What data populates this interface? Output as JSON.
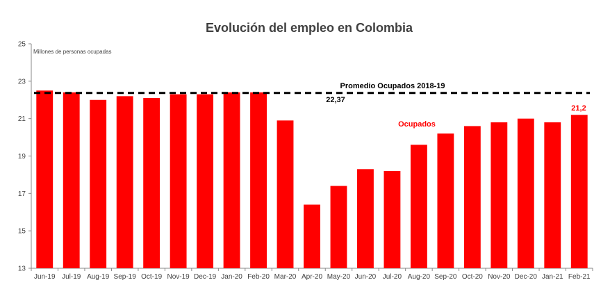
{
  "chart_data": {
    "type": "bar",
    "title": "Evolución del empleo en Colombia",
    "ylabel": "Millones de personas  ocupadas",
    "ylim": [
      13,
      25
    ],
    "yticks": [
      13,
      15,
      17,
      19,
      21,
      23,
      25
    ],
    "categories": [
      "Jun-19",
      "Jul-19",
      "Aug-19",
      "Sep-19",
      "Oct-19",
      "Nov-19",
      "Dec-19",
      "Jan-20",
      "Feb-20",
      "Mar-20",
      "Apr-20",
      "May-20",
      "Jun-20",
      "Jul-20",
      "Aug-20",
      "Sep-20",
      "Oct-20",
      "Nov-20",
      "Dec-20",
      "Jan-21",
      "Feb-21"
    ],
    "series": [
      {
        "name": "Ocupados",
        "values": [
          22.5,
          22.4,
          22.0,
          22.2,
          22.1,
          22.3,
          22.3,
          22.4,
          22.4,
          20.9,
          16.4,
          17.4,
          18.3,
          18.2,
          19.6,
          20.2,
          20.6,
          20.8,
          21.0,
          20.8,
          21.2
        ],
        "color": "#ff0000"
      }
    ],
    "reference_line": {
      "label": "Promedio  Ocupados  2018-19",
      "value": 22.37,
      "value_label": "22,37",
      "color": "#000000",
      "style": "dashed"
    },
    "last_value_label": "21,2",
    "grid": false,
    "legend": "none"
  }
}
